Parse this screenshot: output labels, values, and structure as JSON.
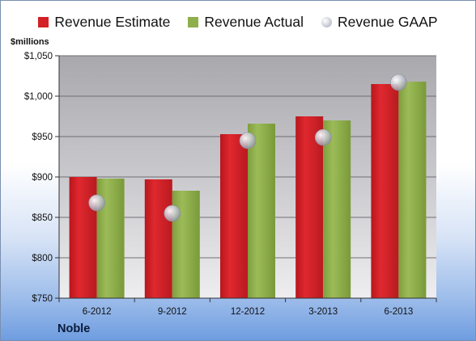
{
  "chart_data": {
    "type": "bar",
    "title": "",
    "ylabel": "$millions",
    "xlabel": "",
    "ylim": [
      750,
      1050
    ],
    "yticks": [
      750,
      800,
      850,
      900,
      950,
      1000,
      1050
    ],
    "ytick_labels": [
      "$750",
      "$800",
      "$850",
      "$900",
      "$950",
      "$1,000",
      "$1,050"
    ],
    "categories": [
      "6-2012",
      "9-2012",
      "12-2012",
      "3-2013",
      "6-2013"
    ],
    "series": [
      {
        "name": "Revenue Estimate",
        "type": "bar",
        "color": "#d42027",
        "values": [
          900,
          897,
          953,
          975,
          1015
        ]
      },
      {
        "name": "Revenue Actual",
        "type": "bar",
        "color": "#8fae4c",
        "values": [
          898,
          883,
          966,
          970,
          1018
        ]
      },
      {
        "name": "Revenue GAAP",
        "type": "scatter",
        "color": "#c9cbd6",
        "values": [
          868,
          855,
          945,
          949,
          1017
        ]
      }
    ],
    "grid": true,
    "legend_position": "top"
  },
  "footer": {
    "company": "Noble"
  }
}
